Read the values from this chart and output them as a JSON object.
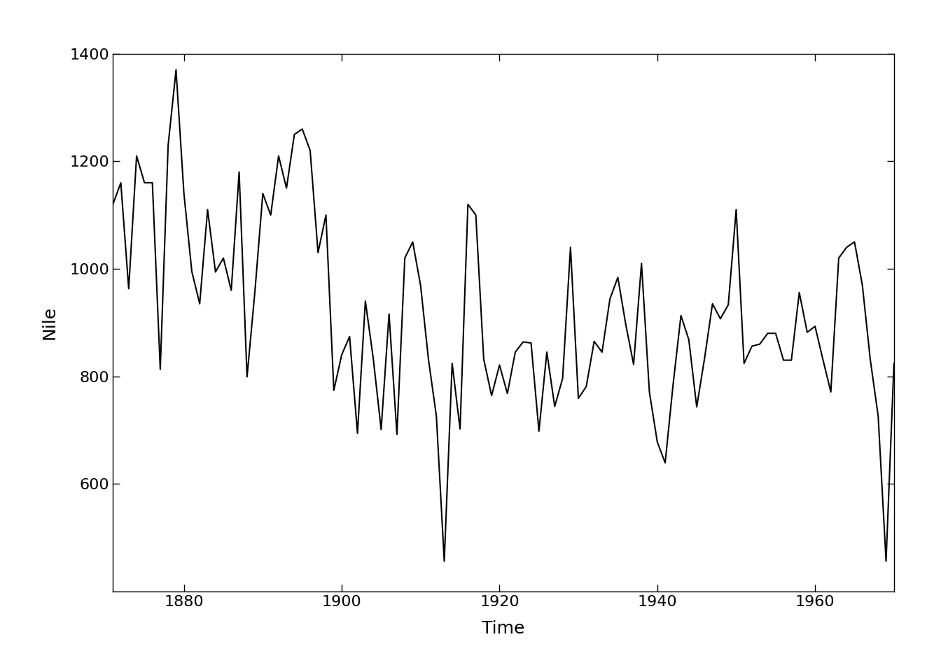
{
  "years": [
    1871,
    1872,
    1873,
    1874,
    1875,
    1876,
    1877,
    1878,
    1879,
    1880,
    1881,
    1882,
    1883,
    1884,
    1885,
    1886,
    1887,
    1888,
    1889,
    1890,
    1891,
    1892,
    1893,
    1894,
    1895,
    1896,
    1897,
    1898,
    1899,
    1900,
    1901,
    1902,
    1903,
    1904,
    1905,
    1906,
    1907,
    1908,
    1909,
    1910,
    1911,
    1912,
    1913,
    1914,
    1915,
    1916,
    1917,
    1918,
    1919,
    1920,
    1921,
    1922,
    1923,
    1924,
    1925,
    1926,
    1927,
    1928,
    1929,
    1930,
    1931,
    1932,
    1933,
    1934,
    1935,
    1936,
    1937,
    1938,
    1939,
    1940,
    1941,
    1942,
    1943,
    1944,
    1945,
    1946,
    1947,
    1948,
    1949,
    1950,
    1951,
    1952,
    1953,
    1954,
    1955,
    1956,
    1957,
    1958,
    1959,
    1960,
    1961,
    1962,
    1963,
    1964,
    1965,
    1966,
    1967,
    1968,
    1969,
    1970
  ],
  "flows": [
    1120,
    1160,
    963,
    1210,
    1160,
    1160,
    813,
    1230,
    1370,
    1140,
    995,
    935,
    1110,
    994,
    1020,
    960,
    1180,
    799,
    958,
    1140,
    1100,
    1210,
    1150,
    1250,
    1260,
    1220,
    1030,
    1100,
    774,
    840,
    874,
    694,
    940,
    833,
    701,
    916,
    692,
    1020,
    1050,
    969,
    831,
    726,
    456,
    824,
    702,
    1120,
    1100,
    832,
    764,
    821,
    768,
    845,
    864,
    862,
    698,
    845,
    744,
    796,
    1040,
    759,
    781,
    865,
    845,
    944,
    984,
    897,
    822,
    1010,
    771,
    678,
    639,
    784,
    913,
    868,
    743,
    834,
    935,
    907,
    933,
    1110,
    824,
    856,
    860,
    880,
    880,
    830,
    830,
    956,
    882,
    893,
    831,
    771,
    1020,
    1040,
    1050,
    969,
    831,
    726,
    456,
    824
  ],
  "line_color": "#000000",
  "line_width": 1.5,
  "background_color": "#ffffff",
  "xlabel": "Time",
  "ylabel": "Nile",
  "xlim": [
    1871,
    1970
  ],
  "ylim": [
    400,
    1400
  ],
  "xticks": [
    1880,
    1900,
    1920,
    1940,
    1960
  ],
  "yticks": [
    600,
    800,
    1000,
    1200,
    1400
  ],
  "xlabel_fontsize": 18,
  "ylabel_fontsize": 18,
  "tick_fontsize": 16
}
